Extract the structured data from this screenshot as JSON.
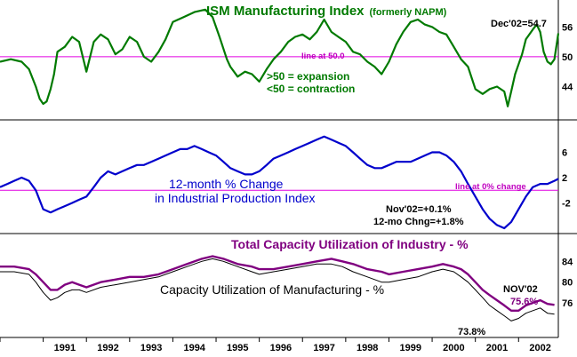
{
  "chart_data": {
    "type": "line",
    "x_start": 1990,
    "x_end": 2002.92,
    "x_tick_labels": [
      "1991",
      "1992",
      "1993",
      "1994",
      "1995",
      "1996",
      "1997",
      "1998",
      "1999",
      "2000",
      "2001",
      "2002"
    ],
    "panels": [
      {
        "id": "ism",
        "title": "ISM Manufacturing Index",
        "title_note": "(formerly NAPM)",
        "ylim": [
          38,
          60
        ],
        "yticks": [
          44,
          50,
          56
        ],
        "reference": {
          "value": 50,
          "label": "line at 50.0"
        },
        "notes": [
          "Dec'02=54.7",
          ">50 = expansion",
          "<50 = contraction"
        ],
        "series": [
          {
            "name": "ISM Manufacturing Index",
            "color": "#007a00",
            "x": [
              1990.0,
              1990.25,
              1990.5,
              1990.67,
              1990.83,
              1990.92,
              1991.0,
              1991.08,
              1991.17,
              1991.25,
              1991.33,
              1991.5,
              1991.67,
              1991.83,
              1992.0,
              1992.17,
              1992.33,
              1992.5,
              1992.67,
              1992.83,
              1993.0,
              1993.17,
              1993.33,
              1993.5,
              1993.67,
              1993.83,
              1994.0,
              1994.25,
              1994.5,
              1994.75,
              1994.92,
              1995.08,
              1995.25,
              1995.33,
              1995.5,
              1995.67,
              1995.83,
              1996.0,
              1996.17,
              1996.33,
              1996.5,
              1996.67,
              1996.83,
              1997.0,
              1997.17,
              1997.33,
              1997.5,
              1997.67,
              1997.83,
              1998.0,
              1998.17,
              1998.33,
              1998.5,
              1998.67,
              1998.83,
              1999.0,
              1999.17,
              1999.33,
              1999.5,
              1999.67,
              1999.83,
              2000.0,
              2000.17,
              2000.33,
              2000.5,
              2000.67,
              2000.83,
              2001.0,
              2001.17,
              2001.33,
              2001.5,
              2001.67,
              2001.75,
              2001.83,
              2001.92,
              2002.0,
              2002.08,
              2002.17,
              2002.25,
              2002.33,
              2002.42,
              2002.5,
              2002.58,
              2002.67,
              2002.75,
              2002.83,
              2002.92
            ],
            "values": [
              49.0,
              49.5,
              49.0,
              47.5,
              44.0,
              41.5,
              40.5,
              41.0,
              43.5,
              46.5,
              51.0,
              52.0,
              54.0,
              53.0,
              47.0,
              53.0,
              54.5,
              53.5,
              50.5,
              51.5,
              54.0,
              53.0,
              50.0,
              49.0,
              51.0,
              53.5,
              57.0,
              58.0,
              59.0,
              59.5,
              58.0,
              54.0,
              49.5,
              48.0,
              46.0,
              47.0,
              46.5,
              45.0,
              47.5,
              49.5,
              51.0,
              53.0,
              54.0,
              54.5,
              53.5,
              55.0,
              57.5,
              55.0,
              54.0,
              53.0,
              51.0,
              50.5,
              49.0,
              48.0,
              46.5,
              49.0,
              52.5,
              55.0,
              57.0,
              57.5,
              56.5,
              56.0,
              55.0,
              54.5,
              52.0,
              49.5,
              48.0,
              43.5,
              42.5,
              43.5,
              44.0,
              43.0,
              40.0,
              43.0,
              46.5,
              48.5,
              50.5,
              53.5,
              54.5,
              55.5,
              56.5,
              55.0,
              51.0,
              49.0,
              48.5,
              49.5,
              54.7
            ]
          }
        ]
      },
      {
        "id": "ip",
        "title_line1": "12-month % Change",
        "title_line2": "in Industrial Production Index",
        "ylim": [
          -6,
          10
        ],
        "yticks": [
          -2,
          2,
          6
        ],
        "reference": {
          "value": 0,
          "label": "line at 0% change"
        },
        "notes": [
          "Nov'02=+0.1%",
          "12-mo Chng=+1.8%"
        ],
        "series": [
          {
            "name": "12-month % Change in Industrial Production Index",
            "color": "#0000cc",
            "x": [
              1990.0,
              1990.17,
              1990.33,
              1990.5,
              1990.67,
              1990.83,
              1991.0,
              1991.17,
              1991.33,
              1991.5,
              1991.67,
              1991.83,
              1992.0,
              1992.17,
              1992.33,
              1992.5,
              1992.67,
              1992.83,
              1993.0,
              1993.17,
              1993.33,
              1993.5,
              1993.67,
              1993.83,
              1994.0,
              1994.17,
              1994.33,
              1994.5,
              1994.67,
              1994.83,
              1995.0,
              1995.17,
              1995.33,
              1995.5,
              1995.67,
              1995.83,
              1996.0,
              1996.17,
              1996.33,
              1996.5,
              1996.67,
              1996.83,
              1997.0,
              1997.17,
              1997.33,
              1997.5,
              1997.67,
              1997.83,
              1998.0,
              1998.17,
              1998.33,
              1998.5,
              1998.67,
              1998.83,
              1999.0,
              1999.17,
              1999.33,
              1999.5,
              1999.67,
              1999.83,
              2000.0,
              2000.17,
              2000.33,
              2000.5,
              2000.67,
              2000.83,
              2001.0,
              2001.17,
              2001.33,
              2001.5,
              2001.67,
              2001.83,
              2002.0,
              2002.17,
              2002.33,
              2002.5,
              2002.67,
              2002.83,
              2002.92
            ],
            "values": [
              0.5,
              1.0,
              1.5,
              2.0,
              1.5,
              0.0,
              -3.0,
              -3.5,
              -3.0,
              -2.5,
              -2.0,
              -1.5,
              -1.0,
              0.5,
              2.0,
              3.0,
              2.5,
              3.0,
              3.5,
              4.0,
              4.0,
              4.5,
              5.0,
              5.5,
              6.0,
              6.5,
              6.5,
              7.0,
              6.5,
              6.0,
              5.5,
              4.5,
              3.5,
              3.0,
              2.5,
              2.5,
              3.0,
              4.0,
              5.0,
              5.5,
              6.0,
              6.5,
              7.0,
              7.5,
              8.0,
              8.5,
              8.0,
              7.5,
              7.0,
              6.0,
              5.0,
              4.0,
              3.5,
              3.5,
              4.0,
              4.5,
              4.5,
              4.5,
              5.0,
              5.5,
              6.0,
              6.0,
              5.5,
              4.5,
              3.0,
              1.0,
              -1.0,
              -3.0,
              -4.5,
              -5.5,
              -6.0,
              -5.0,
              -3.0,
              -1.0,
              0.5,
              1.0,
              1.0,
              1.5,
              1.8
            ]
          }
        ]
      },
      {
        "id": "cu",
        "ylim": [
          70,
          88
        ],
        "yticks": [
          76,
          80,
          84
        ],
        "titles": [
          "Total Capacity Utilization of Industry - %",
          "Capacity Utilization of Manufacturing - %"
        ],
        "notes": [
          "NOV'02",
          "75.6%",
          "73.8%"
        ],
        "series": [
          {
            "name": "Total Capacity Utilization of Industry - %",
            "color": "#800080",
            "x": [
              1990.0,
              1990.33,
              1990.67,
              1990.83,
              1991.0,
              1991.17,
              1991.33,
              1991.5,
              1991.67,
              1991.83,
              1992.0,
              1992.33,
              1992.67,
              1993.0,
              1993.33,
              1993.67,
              1994.0,
              1994.33,
              1994.67,
              1994.92,
              1995.17,
              1995.5,
              1995.83,
              1996.0,
              1996.33,
              1996.67,
              1997.0,
              1997.33,
              1997.67,
              1997.92,
              1998.17,
              1998.5,
              1998.83,
              1999.0,
              1999.33,
              1999.67,
              2000.0,
              2000.25,
              2000.5,
              2000.67,
              2000.83,
              2001.0,
              2001.17,
              2001.33,
              2001.5,
              2001.67,
              2001.83,
              2002.0,
              2002.17,
              2002.33,
              2002.5,
              2002.67,
              2002.83
            ],
            "values": [
              83.0,
              83.0,
              82.5,
              81.5,
              80.0,
              78.5,
              78.5,
              79.5,
              80.0,
              79.5,
              79.0,
              80.0,
              80.5,
              81.0,
              81.0,
              81.5,
              82.5,
              83.5,
              84.5,
              85.0,
              84.5,
              83.5,
              83.0,
              82.5,
              82.5,
              83.0,
              83.5,
              84.0,
              84.5,
              84.0,
              83.5,
              82.5,
              82.0,
              81.5,
              82.0,
              82.5,
              83.0,
              83.5,
              83.0,
              82.5,
              81.5,
              80.0,
              78.5,
              77.5,
              76.5,
              75.5,
              74.5,
              74.5,
              75.5,
              76.0,
              76.5,
              75.8,
              75.6
            ]
          },
          {
            "name": "Capacity Utilization of Manufacturing - %",
            "color": "#000000",
            "x": [
              1990.0,
              1990.33,
              1990.67,
              1990.83,
              1991.0,
              1991.17,
              1991.33,
              1991.5,
              1991.67,
              1991.83,
              1992.0,
              1992.33,
              1992.67,
              1993.0,
              1993.33,
              1993.67,
              1994.0,
              1994.33,
              1994.67,
              1994.92,
              1995.17,
              1995.5,
              1995.83,
              1996.0,
              1996.33,
              1996.67,
              1997.0,
              1997.33,
              1997.67,
              1997.92,
              1998.17,
              1998.5,
              1998.83,
              1999.0,
              1999.33,
              1999.67,
              2000.0,
              2000.25,
              2000.5,
              2000.67,
              2000.83,
              2001.0,
              2001.17,
              2001.33,
              2001.5,
              2001.67,
              2001.83,
              2002.0,
              2002.17,
              2002.33,
              2002.5,
              2002.67,
              2002.83
            ],
            "values": [
              82.0,
              82.0,
              81.5,
              80.0,
              78.0,
              76.5,
              77.0,
              78.0,
              78.5,
              78.5,
              78.0,
              79.0,
              79.5,
              80.0,
              80.5,
              81.0,
              82.0,
              83.0,
              84.0,
              84.5,
              84.0,
              83.0,
              82.0,
              81.5,
              82.0,
              82.5,
              83.0,
              83.5,
              83.5,
              83.0,
              82.0,
              81.0,
              80.0,
              80.0,
              80.5,
              81.0,
              82.0,
              82.5,
              82.0,
              81.0,
              80.0,
              78.5,
              77.0,
              75.5,
              74.5,
              73.5,
              72.5,
              73.0,
              74.0,
              74.5,
              75.0,
              74.0,
              73.8
            ]
          }
        ]
      }
    ]
  }
}
